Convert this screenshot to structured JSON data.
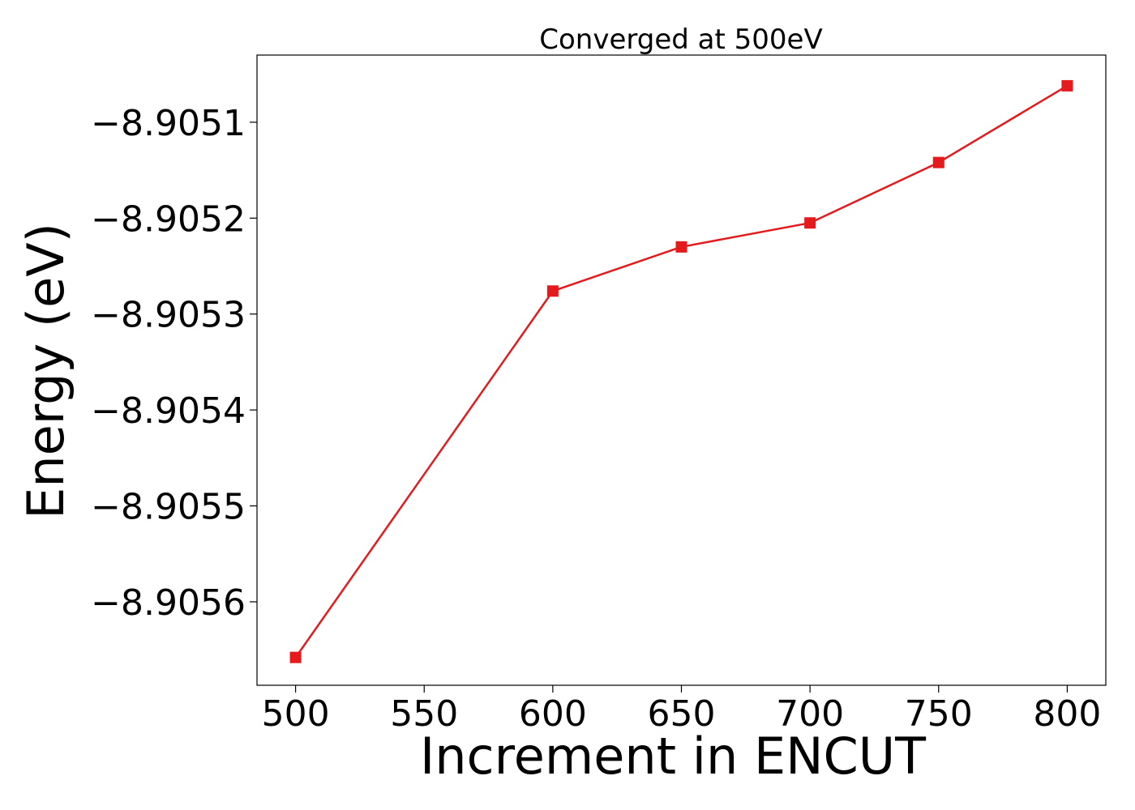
{
  "chart_data": {
    "type": "line",
    "title": "Converged at 500eV",
    "xlabel": "Increment in ENCUT",
    "ylabel": "Energy (eV)",
    "x": [
      500,
      600,
      650,
      700,
      750,
      800
    ],
    "series": [
      {
        "values": [
          -8.905658,
          -8.905276,
          -8.90523,
          -8.905205,
          -8.905142,
          -8.905062
        ],
        "color": "#e41a1c",
        "marker": "square"
      }
    ],
    "xticks": [
      500,
      550,
      600,
      650,
      700,
      750,
      800
    ],
    "xtick_labels": [
      "500",
      "550",
      "600",
      "650",
      "700",
      "750",
      "800"
    ],
    "yticks": [
      -8.9056,
      -8.9055,
      -8.9054,
      -8.9053,
      -8.9052,
      -8.9051
    ],
    "ytick_labels": [
      "−8.9056",
      "−8.9055",
      "−8.9054",
      "−8.9053",
      "−8.9052",
      "−8.9051"
    ],
    "xlim": [
      485,
      815
    ],
    "ylim": [
      -8.905687,
      -8.90503
    ],
    "grid": false,
    "legend": "none"
  }
}
